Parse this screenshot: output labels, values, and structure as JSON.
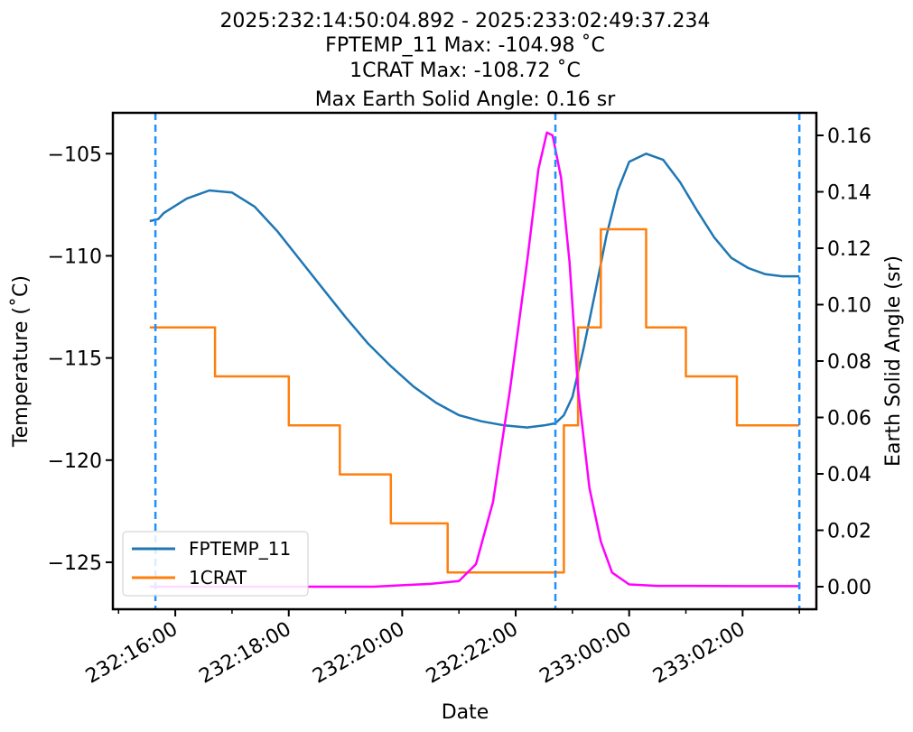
{
  "chart_data": {
    "type": "line",
    "title_lines": [
      "2025:232:14:50:04.892 - 2025:233:02:49:37.234",
      "FPTEMP_11 Max: -104.98 ˚C",
      "1CRAT Max: -108.72 ˚C",
      "Max Earth Solid Angle: 0.16 sr"
    ],
    "xlabel": "Date",
    "ylabel_left": "Temperature (˚C)",
    "ylabel_right": "Earth Solid Angle (sr)",
    "x_ticks": [
      "232:16:00",
      "232:18:00",
      "232:20:00",
      "232:22:00",
      "233:00:00",
      "233:02:00"
    ],
    "x_tick_values": [
      1,
      3,
      5,
      7,
      9,
      11
    ],
    "xlim": [
      -0.1,
      12.3
    ],
    "y_left_ticks": [
      -105,
      -110,
      -115,
      -120,
      -125
    ],
    "y_left_lim": [
      -127.3,
      -103.0
    ],
    "y_right_ticks": [
      0.0,
      0.02,
      0.04,
      0.06,
      0.08,
      0.1,
      0.12,
      0.14,
      0.16
    ],
    "y_right_lim": [
      -0.008,
      0.168
    ],
    "legend": {
      "placement": "lower-left",
      "entries": [
        "FPTEMP_11",
        "1CRAT"
      ]
    },
    "vlines": [
      0.65,
      7.7,
      12.0
    ],
    "colors": {
      "FPTEMP_11": "#1f77b4",
      "1CRAT": "#ff7f0e",
      "earth": "#ff00ff",
      "vline": "#1e90ff"
    },
    "series": [
      {
        "name": "FPTEMP_11",
        "axis": "left",
        "x": [
          0.55,
          0.7,
          0.8,
          1.2,
          1.6,
          2.0,
          2.4,
          2.8,
          3.2,
          3.6,
          4.0,
          4.4,
          4.8,
          5.2,
          5.6,
          6.0,
          6.4,
          6.8,
          7.2,
          7.5,
          7.7,
          7.85,
          8.0,
          8.2,
          8.4,
          8.6,
          8.8,
          9.0,
          9.3,
          9.6,
          9.9,
          10.2,
          10.5,
          10.8,
          11.1,
          11.4,
          11.7,
          12.0
        ],
        "y": [
          -108.3,
          -108.2,
          -107.9,
          -107.2,
          -106.8,
          -106.9,
          -107.6,
          -108.8,
          -110.2,
          -111.6,
          -113.0,
          -114.3,
          -115.4,
          -116.4,
          -117.2,
          -117.8,
          -118.1,
          -118.3,
          -118.4,
          -118.3,
          -118.2,
          -117.8,
          -116.9,
          -114.5,
          -111.8,
          -109.0,
          -106.8,
          -105.4,
          -105.0,
          -105.3,
          -106.4,
          -107.8,
          -109.1,
          -110.1,
          -110.6,
          -110.9,
          -111.0,
          -111.0
        ]
      },
      {
        "name": "1CRAT",
        "axis": "left",
        "x": [
          0.55,
          1.7,
          1.7,
          3.0,
          3.0,
          3.9,
          3.9,
          4.8,
          4.8,
          5.8,
          5.8,
          6.0,
          6.0,
          7.7,
          7.85,
          7.85,
          8.1,
          8.1,
          8.5,
          8.5,
          9.3,
          9.3,
          10.0,
          10.0,
          10.9,
          10.9,
          12.0
        ],
        "y": [
          -113.5,
          -113.5,
          -115.9,
          -115.9,
          -118.3,
          -118.3,
          -120.7,
          -120.7,
          -123.1,
          -123.1,
          -125.5,
          -125.5,
          -125.5,
          -125.5,
          -125.5,
          -118.3,
          -118.3,
          -113.5,
          -113.5,
          -108.7,
          -108.7,
          -113.5,
          -113.5,
          -115.9,
          -115.9,
          -118.3,
          -118.3
        ]
      },
      {
        "name": "Earth Solid Angle",
        "axis": "right",
        "x": [
          0.55,
          1.5,
          2.5,
          3.5,
          4.5,
          5.0,
          5.5,
          6.0,
          6.3,
          6.6,
          6.9,
          7.2,
          7.4,
          7.55,
          7.65,
          7.8,
          7.95,
          8.1,
          8.3,
          8.5,
          8.7,
          9.0,
          9.5,
          10.0,
          11.0,
          12.0
        ],
        "y": [
          0.0,
          0.0,
          0.0,
          0.0,
          0.0,
          0.0005,
          0.001,
          0.002,
          0.008,
          0.03,
          0.07,
          0.115,
          0.148,
          0.161,
          0.16,
          0.145,
          0.115,
          0.07,
          0.035,
          0.016,
          0.005,
          0.0008,
          0.0003,
          0.0003,
          0.0002,
          0.0002
        ]
      }
    ]
  }
}
